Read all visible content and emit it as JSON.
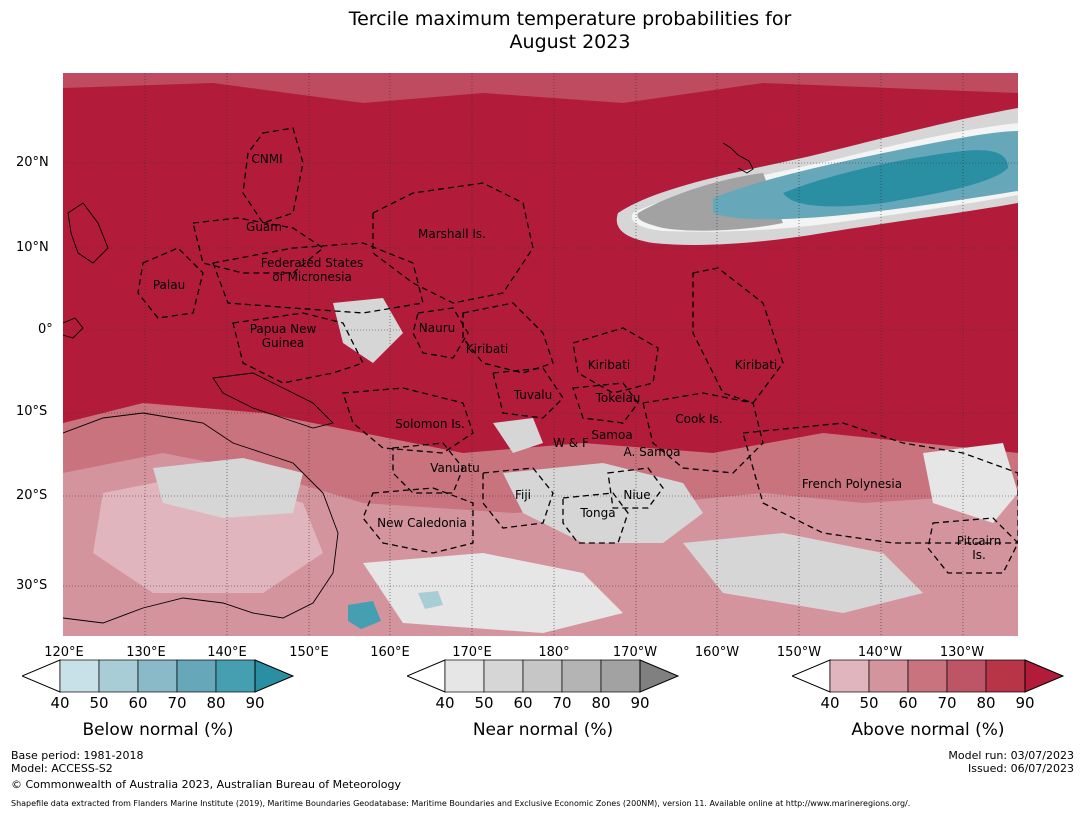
{
  "title_line1": "Tercile maximum temperature probabilities for",
  "title_line2": "August 2023",
  "lat_labels": [
    "20°N",
    "10°N",
    "0°",
    "10°S",
    "20°S",
    "30°S"
  ],
  "lon_labels": [
    "120°E",
    "130°E",
    "140°E",
    "150°E",
    "160°E",
    "170°E",
    "180°",
    "170°W",
    "160°W",
    "150°W",
    "140°W",
    "130°W"
  ],
  "places": [
    "CNMI",
    "Guam",
    "Marshall Is.",
    "Federated States\nof Micronesia",
    "Palau",
    "Papua New\nGuinea",
    "Nauru",
    "Kiribati",
    "Kiribati",
    "Kiribati",
    "Tuvalu",
    "Tokelau",
    "Cook Is.",
    "Solomon Is.",
    "W & F",
    "Samoa",
    "A. Samoa",
    "Vanuatu",
    "Fiji",
    "Niue",
    "French Polynesia",
    "Tonga",
    "New Caledonia",
    "Pitcairn\nIs."
  ],
  "legends": [
    {
      "label": "Below normal (%)",
      "ticks": [
        "40",
        "50",
        "60",
        "70",
        "80",
        "90"
      ],
      "colors": [
        "#ffffff",
        "#c8e1e8",
        "#a9cdd6",
        "#8ab9c7",
        "#66a8b9",
        "#459fb0",
        "#2a8fa3"
      ]
    },
    {
      "label": "Near normal (%)",
      "ticks": [
        "40",
        "50",
        "60",
        "70",
        "80",
        "90"
      ],
      "colors": [
        "#ffffff",
        "#e6e6e6",
        "#d6d6d6",
        "#c6c6c6",
        "#b4b4b4",
        "#a2a2a2",
        "#808080"
      ]
    },
    {
      "label": "Above normal (%)",
      "ticks": [
        "40",
        "50",
        "60",
        "70",
        "80",
        "90"
      ],
      "colors": [
        "#ffffff",
        "#e0b5bd",
        "#d4949e",
        "#c9737e",
        "#be5566",
        "#b73547",
        "#b21c3a"
      ]
    }
  ],
  "footer": {
    "base_period": "Base period: 1981-2018",
    "model": "Model: ACCESS-S2",
    "copyright": "© Commonwealth of Australia 2023, Australian Bureau of Meteorology",
    "model_run": "Model run: 03/07/2023",
    "issued": "Issued: 06/07/2023",
    "shapefile": "Shapefile data extracted from Flanders Marine Institute (2019), Maritime Boundaries Geodatabase: Maritime Boundaries and Exclusive Economic Zones (200NM), version 11. Available online at http://www.marineregions.org/."
  }
}
